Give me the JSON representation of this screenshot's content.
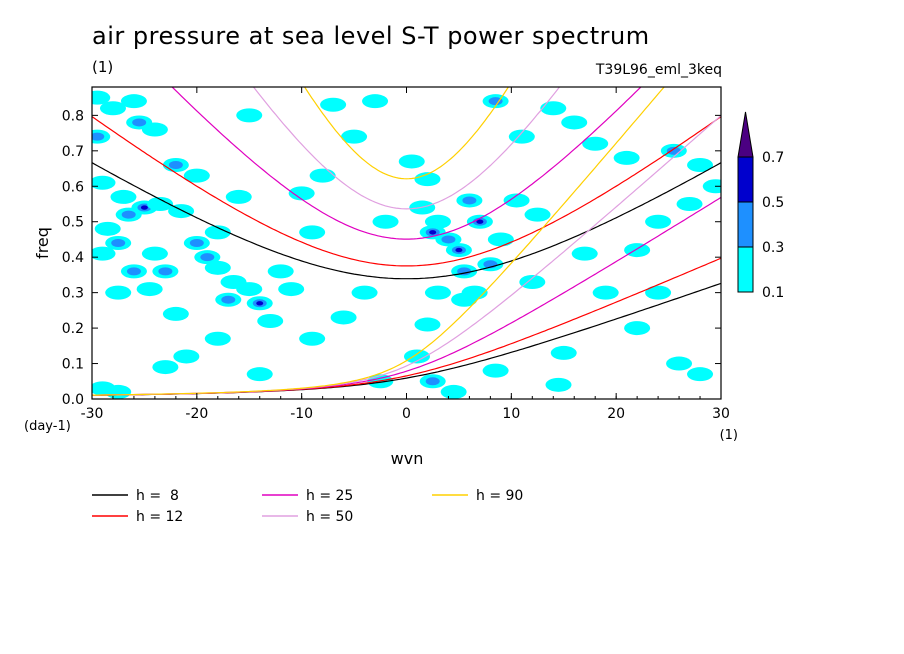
{
  "title": "air pressure at sea level S-T power spectrum",
  "units_label": "(1)",
  "run_label": "T39L96_eml_3keq",
  "chart_data": {
    "type": "heatmap",
    "title": "air pressure at sea level S-T power spectrum",
    "xlabel": "wvn",
    "ylabel": "freq",
    "x_unit_label": "(1)",
    "y_unit_label": "(day-1)",
    "xlim": [
      -30,
      30
    ],
    "ylim": [
      0,
      0.88
    ],
    "x_ticks": [
      -30,
      -20,
      -10,
      0,
      10,
      20,
      30
    ],
    "x_tick_labels": [
      "-30",
      "-20",
      "-10",
      "0",
      "10",
      "20",
      "30"
    ],
    "y_ticks": [
      0,
      0.1,
      0.2,
      0.3,
      0.4,
      0.5,
      0.6,
      0.7,
      0.8
    ],
    "y_tick_labels": [
      "0.0",
      "0.1",
      "0.2",
      "0.3",
      "0.4",
      "0.5",
      "0.6",
      "0.7",
      "0.8"
    ],
    "colorbar": {
      "levels": [
        0.1,
        0.3,
        0.5,
        0.7
      ],
      "labels": [
        "0.1",
        "0.3",
        "0.5",
        "0.7"
      ],
      "colors": [
        "#00ffff",
        "#1e90ff",
        "#0000cd",
        "#4b0082"
      ],
      "extend": "max"
    },
    "dispersion_curves": [
      {
        "label": "h =  8",
        "h": 8,
        "color": "#000000"
      },
      {
        "label": "h = 12",
        "h": 12,
        "color": "#ff0000"
      },
      {
        "label": "h = 25",
        "h": 25,
        "color": "#e000c0"
      },
      {
        "label": "h = 50",
        "h": 50,
        "color": "#e0a0e0"
      },
      {
        "label": "h = 90",
        "h": 90,
        "color": "#ffd000"
      }
    ],
    "patches": [
      {
        "x": -29.5,
        "y": 0.85,
        "level": 0
      },
      {
        "x": -28,
        "y": 0.82,
        "level": 0
      },
      {
        "x": -26,
        "y": 0.84,
        "level": 0
      },
      {
        "x": -29.5,
        "y": 0.74,
        "level": 1
      },
      {
        "x": -29,
        "y": 0.61,
        "level": 0
      },
      {
        "x": -27,
        "y": 0.57,
        "level": 0
      },
      {
        "x": -25.5,
        "y": 0.78,
        "level": 1
      },
      {
        "x": -24,
        "y": 0.76,
        "level": 0
      },
      {
        "x": -25,
        "y": 0.54,
        "level": 2
      },
      {
        "x": -26.5,
        "y": 0.52,
        "level": 1
      },
      {
        "x": -23.5,
        "y": 0.55,
        "level": 0
      },
      {
        "x": -22,
        "y": 0.66,
        "level": 1
      },
      {
        "x": -20,
        "y": 0.63,
        "level": 0
      },
      {
        "x": -21.5,
        "y": 0.53,
        "level": 0
      },
      {
        "x": -18,
        "y": 0.47,
        "level": 0
      },
      {
        "x": -28.5,
        "y": 0.48,
        "level": 0
      },
      {
        "x": -29,
        "y": 0.41,
        "level": 0
      },
      {
        "x": -27.5,
        "y": 0.44,
        "level": 1
      },
      {
        "x": -26,
        "y": 0.36,
        "level": 1
      },
      {
        "x": -24,
        "y": 0.41,
        "level": 0
      },
      {
        "x": -23,
        "y": 0.36,
        "level": 1
      },
      {
        "x": -24.5,
        "y": 0.31,
        "level": 0
      },
      {
        "x": -27.5,
        "y": 0.3,
        "level": 0
      },
      {
        "x": -20,
        "y": 0.44,
        "level": 1
      },
      {
        "x": -19,
        "y": 0.4,
        "level": 1
      },
      {
        "x": -18,
        "y": 0.37,
        "level": 0
      },
      {
        "x": -16.5,
        "y": 0.33,
        "level": 0
      },
      {
        "x": -17,
        "y": 0.28,
        "level": 1
      },
      {
        "x": -15,
        "y": 0.31,
        "level": 0
      },
      {
        "x": -14,
        "y": 0.27,
        "level": 2
      },
      {
        "x": -13,
        "y": 0.22,
        "level": 0
      },
      {
        "x": -12,
        "y": 0.36,
        "level": 0
      },
      {
        "x": -11,
        "y": 0.31,
        "level": 0
      },
      {
        "x": -22,
        "y": 0.24,
        "level": 0
      },
      {
        "x": -21,
        "y": 0.12,
        "level": 0
      },
      {
        "x": -29,
        "y": 0.03,
        "level": 0
      },
      {
        "x": -27.5,
        "y": 0.02,
        "level": 0
      },
      {
        "x": -10,
        "y": 0.58,
        "level": 0
      },
      {
        "x": -8,
        "y": 0.63,
        "level": 0
      },
      {
        "x": -7,
        "y": 0.83,
        "level": 0
      },
      {
        "x": -5,
        "y": 0.74,
        "level": 0
      },
      {
        "x": -9,
        "y": 0.47,
        "level": 0
      },
      {
        "x": -3,
        "y": 0.84,
        "level": 0
      },
      {
        "x": -2,
        "y": 0.5,
        "level": 0
      },
      {
        "x": 0.5,
        "y": 0.67,
        "level": 0
      },
      {
        "x": 2,
        "y": 0.62,
        "level": 0
      },
      {
        "x": 1.5,
        "y": 0.54,
        "level": 0
      },
      {
        "x": 3,
        "y": 0.5,
        "level": 0
      },
      {
        "x": 2.5,
        "y": 0.47,
        "level": 2
      },
      {
        "x": 4,
        "y": 0.45,
        "level": 1
      },
      {
        "x": 5,
        "y": 0.42,
        "level": 2
      },
      {
        "x": 7,
        "y": 0.5,
        "level": 2
      },
      {
        "x": 6,
        "y": 0.56,
        "level": 1
      },
      {
        "x": 8,
        "y": 0.38,
        "level": 1
      },
      {
        "x": 9,
        "y": 0.45,
        "level": 0
      },
      {
        "x": 5.5,
        "y": 0.36,
        "level": 1
      },
      {
        "x": 8.5,
        "y": 0.84,
        "level": 1
      },
      {
        "x": 11,
        "y": 0.74,
        "level": 0
      },
      {
        "x": 10.5,
        "y": 0.56,
        "level": 0
      },
      {
        "x": 12.5,
        "y": 0.52,
        "level": 0
      },
      {
        "x": 3,
        "y": 0.3,
        "level": 0
      },
      {
        "x": 5.5,
        "y": 0.28,
        "level": 0
      },
      {
        "x": 6.5,
        "y": 0.3,
        "level": 0
      },
      {
        "x": 2,
        "y": 0.21,
        "level": 0
      },
      {
        "x": 1,
        "y": 0.12,
        "level": 0
      },
      {
        "x": -2.5,
        "y": 0.05,
        "level": 0
      },
      {
        "x": 2.5,
        "y": 0.05,
        "level": 1
      },
      {
        "x": 4.5,
        "y": 0.02,
        "level": 0
      },
      {
        "x": 8.5,
        "y": 0.08,
        "level": 0
      },
      {
        "x": 14,
        "y": 0.82,
        "level": 0
      },
      {
        "x": 16,
        "y": 0.78,
        "level": 0
      },
      {
        "x": 18,
        "y": 0.72,
        "level": 0
      },
      {
        "x": 21,
        "y": 0.68,
        "level": 0
      },
      {
        "x": 25.5,
        "y": 0.7,
        "level": 1
      },
      {
        "x": 28,
        "y": 0.66,
        "level": 0
      },
      {
        "x": 27,
        "y": 0.55,
        "level": 0
      },
      {
        "x": 29.5,
        "y": 0.6,
        "level": 0
      },
      {
        "x": 24,
        "y": 0.5,
        "level": 0
      },
      {
        "x": 22,
        "y": 0.42,
        "level": 0
      },
      {
        "x": 19,
        "y": 0.3,
        "level": 0
      },
      {
        "x": 22,
        "y": 0.2,
        "level": 0
      },
      {
        "x": 26,
        "y": 0.1,
        "level": 0
      },
      {
        "x": 28,
        "y": 0.07,
        "level": 0
      },
      {
        "x": 24,
        "y": 0.3,
        "level": 0
      },
      {
        "x": -16,
        "y": 0.57,
        "level": 0
      },
      {
        "x": -15,
        "y": 0.8,
        "level": 0
      },
      {
        "x": -18,
        "y": 0.17,
        "level": 0
      },
      {
        "x": -9,
        "y": 0.17,
        "level": 0
      },
      {
        "x": -6,
        "y": 0.23,
        "level": 0
      },
      {
        "x": -4,
        "y": 0.3,
        "level": 0
      },
      {
        "x": -23,
        "y": 0.09,
        "level": 0
      },
      {
        "x": -14,
        "y": 0.07,
        "level": 0
      },
      {
        "x": 15,
        "y": 0.13,
        "level": 0
      },
      {
        "x": 17,
        "y": 0.41,
        "level": 0
      },
      {
        "x": 12,
        "y": 0.33,
        "level": 0
      },
      {
        "x": 14.5,
        "y": 0.04,
        "level": 0
      }
    ]
  }
}
